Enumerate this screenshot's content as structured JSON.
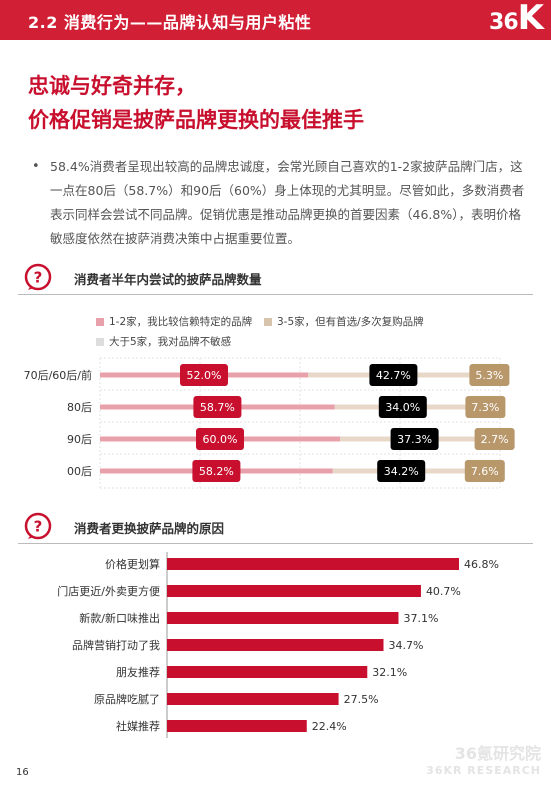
{
  "header": {
    "title": "2.2 消费行为——品牌认知与用户粘性",
    "logo": "36Kr"
  },
  "headline": {
    "line1": "忠诚与好奇并存，",
    "line2": "价格促销是披萨品牌更换的最佳推手"
  },
  "bullet": {
    "marker": "•",
    "text": "58.4%消费者呈现出较高的品牌忠诚度，会常光顾自己喜欢的1-2家披萨品牌门店，这一点在80后（58.7%）和90后（60%）身上体现的尤其明显。尽管如此，多数消费者表示同样会尝试不同品牌。促销优惠是推动品牌更换的首要因素（46.8%），表明价格敏感度依然在披萨消费决策中占据重要位置。"
  },
  "section1": {
    "title": "消费者半年内尝试的披萨品牌数量"
  },
  "section2": {
    "title": "消费者更换披萨品牌的原因"
  },
  "chart_data": [
    {
      "type": "bar",
      "categories": [
        "70后/60后/前",
        "80后",
        "90后",
        "00后"
      ],
      "series": [
        {
          "name": "1-2家，我比较信赖特定的品牌",
          "values": [
            52.0,
            58.7,
            60.0,
            58.2
          ],
          "color": "#c8102e"
        },
        {
          "name": "3-5家，但有首选/多次复购品牌",
          "values": [
            42.7,
            34.0,
            37.3,
            34.2
          ],
          "color": "#000000"
        },
        {
          "name": "大于5家，我对品牌不敏感",
          "values": [
            5.3,
            7.3,
            2.7,
            7.6
          ],
          "color": "#b8976a"
        }
      ],
      "labels": [
        [
          "52.0%",
          "42.7%",
          "5.3%"
        ],
        [
          "58.7%",
          "34.0%",
          "7.3%"
        ],
        [
          "60.0%",
          "37.3%",
          "2.7%"
        ],
        [
          "58.2%",
          "34.2%",
          "7.6%"
        ]
      ],
      "track_colors": [
        "#e8a0ab",
        "#e8d8c8",
        "#dddddd"
      ],
      "grid": true
    },
    {
      "type": "bar",
      "orientation": "horizontal",
      "categories": [
        "价格更划算",
        "门店更近/外卖更方便",
        "新款/新口味推出",
        "品牌营销打动了我",
        "朋友推荐",
        "原品牌吃腻了",
        "社媒推荐"
      ],
      "values": [
        46.8,
        40.7,
        37.1,
        34.7,
        32.1,
        27.5,
        22.4
      ],
      "labels": [
        "46.8%",
        "40.7%",
        "37.1%",
        "34.7%",
        "32.1%",
        "27.5%",
        "22.4%"
      ],
      "color": "#c8102e"
    }
  ],
  "footer": {
    "page_number": "16",
    "watermark_cn": "36氪研究院",
    "watermark_en": "36KR RESEARCH"
  }
}
